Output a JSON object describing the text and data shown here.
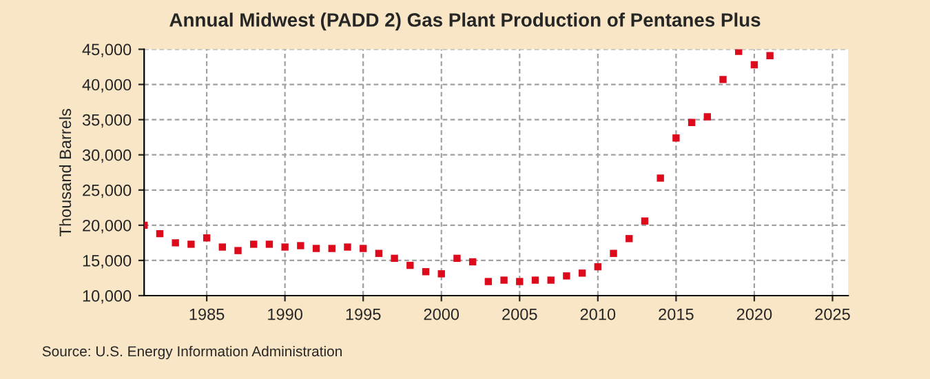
{
  "chart_data": {
    "type": "scatter",
    "title": "Annual Midwest (PADD 2) Gas Plant Production of Pentanes Plus",
    "ylabel": "Thousand Barrels",
    "x": [
      1981,
      1982,
      1983,
      1984,
      1985,
      1986,
      1987,
      1988,
      1989,
      1990,
      1991,
      1992,
      1993,
      1994,
      1995,
      1996,
      1997,
      1998,
      1999,
      2000,
      2001,
      2002,
      2003,
      2004,
      2005,
      2006,
      2007,
      2008,
      2009,
      2010,
      2011,
      2012,
      2013,
      2014,
      2015,
      2016,
      2017,
      2018,
      2019,
      2020,
      2021
    ],
    "series": [
      {
        "color": "#dd0a1c",
        "values": [
          20000,
          18800,
          17500,
          17300,
          18200,
          16900,
          16400,
          17300,
          17300,
          16900,
          17100,
          16700,
          16700,
          16900,
          16700,
          16000,
          15300,
          14300,
          13400,
          13100,
          15300,
          14800,
          12000,
          12200,
          12000,
          12200,
          12200,
          12800,
          13200,
          14100,
          16000,
          18100,
          20600,
          26700,
          32400,
          34600,
          35400,
          40700,
          44700,
          42800,
          44100
        ]
      }
    ],
    "xlim": [
      1981,
      2026
    ],
    "xticks": [
      1985,
      1990,
      1995,
      2000,
      2005,
      2010,
      2015,
      2020,
      2025
    ],
    "ylim": [
      10000,
      45000
    ],
    "yticks": [
      {
        "value": 10000,
        "label": "10,000"
      },
      {
        "value": 15000,
        "label": "15,000"
      },
      {
        "value": 20000,
        "label": "20,000"
      },
      {
        "value": 25000,
        "label": "25,000"
      },
      {
        "value": 30000,
        "label": "30,000"
      },
      {
        "value": 35000,
        "label": "35,000"
      },
      {
        "value": 40000,
        "label": "40,000"
      },
      {
        "value": 45000,
        "label": "45,000"
      }
    ],
    "grid": true,
    "marker": "square",
    "annotations": [
      "Source: U.S. Energy Information Administration"
    ]
  }
}
